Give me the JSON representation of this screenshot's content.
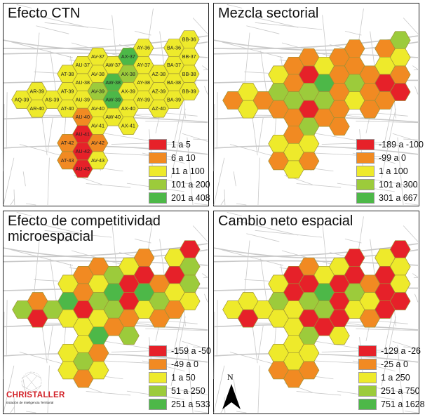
{
  "cells": [
    "AQ-39",
    "AR-39",
    "AR-40",
    "AS-39",
    "AT-38",
    "AT-39",
    "AT-40",
    "AT-42",
    "AT-43",
    "AU-37",
    "AU-38",
    "AU-39",
    "AU-40",
    "AU-41",
    "AU-42",
    "AU-43",
    "AV-37",
    "AV-38",
    "AV-39",
    "AV-40",
    "AV-41",
    "AV-42",
    "AV-43",
    "AW-37",
    "AW-38",
    "AW-39",
    "AW-40",
    "AX-37",
    "AX-38",
    "AX-39",
    "AX-40",
    "AX-41",
    "AY-36",
    "AY-37",
    "AY-38",
    "AY-39",
    "AZ-38",
    "AZ-39",
    "AZ-40",
    "BA-36",
    "BA-37",
    "BA-38",
    "BA-39",
    "BB-36",
    "BB-37",
    "BB-38",
    "BB-39"
  ],
  "class_colors": [
    "#e62129",
    "#f18a22",
    "#eeea2b",
    "#9ccb3b",
    "#4db848"
  ],
  "panels": [
    {
      "title": "Efecto CTN",
      "show_cell_labels": true,
      "legend": [
        "1 a 5",
        "6 a 10",
        "11 a 100",
        "101 a 200",
        "201 a 408"
      ],
      "classes": [
        3,
        3,
        3,
        3,
        3,
        3,
        3,
        2,
        2,
        3,
        3,
        3,
        2,
        1,
        1,
        1,
        3,
        3,
        4,
        3,
        3,
        2,
        3,
        3,
        5,
        5,
        3,
        5,
        4,
        3,
        3,
        3,
        3,
        3,
        3,
        3,
        3,
        3,
        3,
        3,
        3,
        3,
        3,
        3,
        3,
        3,
        3
      ]
    },
    {
      "title": "Mezcla sectorial",
      "show_cell_labels": false,
      "legend": [
        "-189 a -100",
        "-99 a 0",
        "1 a 100",
        "101 a 300",
        "301 a 667"
      ],
      "classes": [
        2,
        3,
        3,
        2,
        3,
        4,
        2,
        3,
        2,
        2,
        2,
        4,
        2,
        2,
        3,
        3,
        2,
        1,
        4,
        1,
        4,
        3,
        2,
        3,
        5,
        4,
        2,
        2,
        2,
        2,
        2,
        2,
        2,
        2,
        4,
        3,
        2,
        2,
        2,
        2,
        3,
        1,
        2,
        4,
        3,
        2,
        1
      ]
    },
    {
      "title": "Efecto de competitividad microespacial",
      "title_lines": [
        "Efecto de competitividad",
        "microespacial"
      ],
      "show_cell_labels": false,
      "legend": [
        "-159 a -50",
        "-49 a 0",
        "1 a 50",
        "51 a 250",
        "251 a 533"
      ],
      "classes": [
        4,
        2,
        1,
        4,
        3,
        5,
        3,
        3,
        3,
        2,
        2,
        1,
        3,
        3,
        4,
        2,
        2,
        3,
        4,
        3,
        5,
        2,
        3,
        4,
        5,
        4,
        2,
        3,
        1,
        1,
        2,
        4,
        2,
        1,
        5,
        3,
        2,
        4,
        2,
        3,
        1,
        3,
        2,
        1,
        4,
        4,
        3
      ]
    },
    {
      "title": "Cambio neto espacial",
      "show_cell_labels": false,
      "legend": [
        "-129 a -26",
        "-25 a 0",
        "1 a 250",
        "251 a 750",
        "751 a 1628"
      ],
      "classes": [
        3,
        3,
        1,
        3,
        3,
        4,
        3,
        3,
        2,
        1,
        1,
        3,
        3,
        3,
        3,
        2,
        2,
        1,
        4,
        1,
        4,
        3,
        2,
        3,
        5,
        4,
        1,
        3,
        1,
        1,
        1,
        3,
        1,
        1,
        4,
        3,
        2,
        3,
        2,
        3,
        1,
        1,
        1,
        1,
        3,
        3,
        1
      ]
    }
  ],
  "logo": {
    "name": "CHRISTALLER",
    "subtitle": "Estación de Inteligencia Territorial"
  },
  "north_arrow": {
    "label": "N"
  }
}
